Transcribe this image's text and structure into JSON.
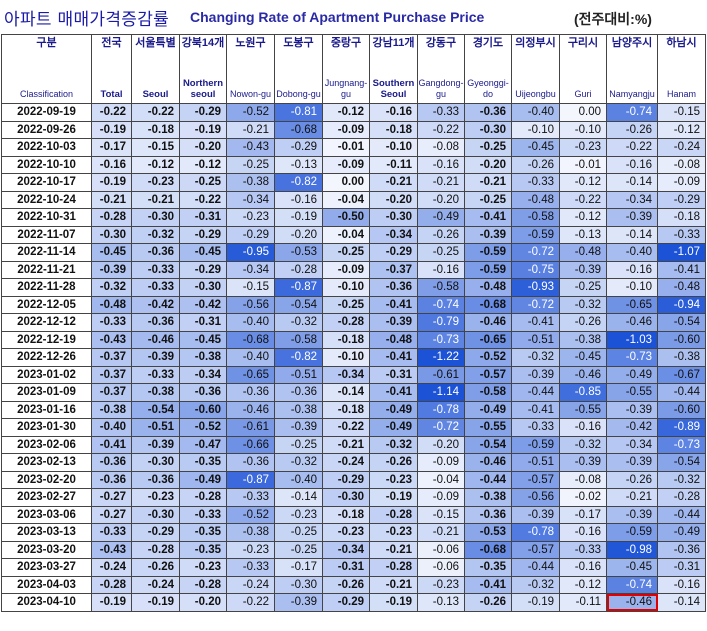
{
  "title": {
    "korean": "아파트 매매가격증감률",
    "english": "Changing Rate of Apartment Purchase Price",
    "unit": "(전주대비:%)"
  },
  "columns": [
    {
      "ko": "구분",
      "en": "Classification"
    },
    {
      "ko": "전국",
      "en": "Total"
    },
    {
      "ko": "서울특별",
      "en": "Seoul"
    },
    {
      "ko": "강북14개",
      "en": "Northern seoul"
    },
    {
      "ko": "노원구",
      "en": "Nowon-gu"
    },
    {
      "ko": "도봉구",
      "en": "Dobong-gu"
    },
    {
      "ko": "중랑구",
      "en": "Jungnang-gu"
    },
    {
      "ko": "강남11개",
      "en": "Southern Seoul"
    },
    {
      "ko": "강동구",
      "en": "Gangdong-gu"
    },
    {
      "ko": "경기도",
      "en": "Gyeonggi-do"
    },
    {
      "ko": "의정부시",
      "en": "Uijeongbu"
    },
    {
      "ko": "구리시",
      "en": "Guri"
    },
    {
      "ko": "남양주시",
      "en": "Namyangju"
    },
    {
      "ko": "하남시",
      "en": "Hanam"
    }
  ],
  "rows": [
    {
      "date": "2022-09-19",
      "values": [
        "-0.22",
        "-0.22",
        "-0.29",
        "-0.52",
        "-0.81",
        "-0.12",
        "-0.16",
        "-0.33",
        "-0.36",
        "-0.40",
        "0.00",
        "-0.74",
        "-0.15"
      ]
    },
    {
      "date": "2022-09-26",
      "values": [
        "-0.19",
        "-0.18",
        "-0.19",
        "-0.21",
        "-0.68",
        "-0.09",
        "-0.18",
        "-0.22",
        "-0.30",
        "-0.10",
        "-0.10",
        "-0.26",
        "-0.12"
      ]
    },
    {
      "date": "2022-10-03",
      "values": [
        "-0.17",
        "-0.15",
        "-0.20",
        "-0.43",
        "-0.29",
        "-0.01",
        "-0.10",
        "-0.08",
        "-0.25",
        "-0.45",
        "-0.23",
        "-0.22",
        "-0.24"
      ]
    },
    {
      "date": "2022-10-10",
      "values": [
        "-0.16",
        "-0.12",
        "-0.12",
        "-0.25",
        "-0.13",
        "-0.09",
        "-0.11",
        "-0.16",
        "-0.20",
        "-0.26",
        "-0.01",
        "-0.16",
        "-0.08"
      ]
    },
    {
      "date": "2022-10-17",
      "values": [
        "-0.19",
        "-0.23",
        "-0.25",
        "-0.38",
        "-0.82",
        "0.00",
        "-0.21",
        "-0.21",
        "-0.21",
        "-0.33",
        "-0.12",
        "-0.14",
        "-0.09"
      ]
    },
    {
      "date": "2022-10-24",
      "values": [
        "-0.21",
        "-0.21",
        "-0.22",
        "-0.34",
        "-0.16",
        "-0.04",
        "-0.20",
        "-0.20",
        "-0.25",
        "-0.48",
        "-0.22",
        "-0.34",
        "-0.29"
      ]
    },
    {
      "date": "2022-10-31",
      "values": [
        "-0.28",
        "-0.30",
        "-0.31",
        "-0.23",
        "-0.19",
        "-0.50",
        "-0.30",
        "-0.49",
        "-0.41",
        "-0.58",
        "-0.12",
        "-0.39",
        "-0.18"
      ]
    },
    {
      "date": "2022-11-07",
      "values": [
        "-0.30",
        "-0.32",
        "-0.29",
        "-0.29",
        "-0.20",
        "-0.04",
        "-0.34",
        "-0.26",
        "-0.39",
        "-0.59",
        "-0.13",
        "-0.14",
        "-0.33"
      ]
    },
    {
      "date": "2022-11-14",
      "values": [
        "-0.45",
        "-0.36",
        "-0.45",
        "-0.95",
        "-0.53",
        "-0.25",
        "-0.29",
        "-0.25",
        "-0.59",
        "-0.72",
        "-0.48",
        "-0.40",
        "-1.07"
      ]
    },
    {
      "date": "2022-11-21",
      "values": [
        "-0.39",
        "-0.33",
        "-0.29",
        "-0.34",
        "-0.28",
        "-0.09",
        "-0.37",
        "-0.16",
        "-0.59",
        "-0.75",
        "-0.39",
        "-0.16",
        "-0.41"
      ]
    },
    {
      "date": "2022-11-28",
      "values": [
        "-0.32",
        "-0.33",
        "-0.30",
        "-0.15",
        "-0.87",
        "-0.10",
        "-0.36",
        "-0.58",
        "-0.48",
        "-0.93",
        "-0.25",
        "-0.10",
        "-0.48"
      ]
    },
    {
      "date": "2022-12-05",
      "values": [
        "-0.48",
        "-0.42",
        "-0.42",
        "-0.56",
        "-0.54",
        "-0.25",
        "-0.41",
        "-0.74",
        "-0.68",
        "-0.72",
        "-0.32",
        "-0.65",
        "-0.94"
      ]
    },
    {
      "date": "2022-12-12",
      "values": [
        "-0.33",
        "-0.36",
        "-0.31",
        "-0.40",
        "-0.32",
        "-0.28",
        "-0.39",
        "-0.79",
        "-0.46",
        "-0.41",
        "-0.26",
        "-0.46",
        "-0.54"
      ]
    },
    {
      "date": "2022-12-19",
      "values": [
        "-0.43",
        "-0.46",
        "-0.45",
        "-0.68",
        "-0.58",
        "-0.18",
        "-0.48",
        "-0.73",
        "-0.65",
        "-0.51",
        "-0.38",
        "-1.03",
        "-0.60"
      ]
    },
    {
      "date": "2022-12-26",
      "values": [
        "-0.37",
        "-0.39",
        "-0.38",
        "-0.40",
        "-0.82",
        "-0.10",
        "-0.41",
        "-1.22",
        "-0.52",
        "-0.32",
        "-0.45",
        "-0.73",
        "-0.38"
      ]
    },
    {
      "date": "2023-01-02",
      "values": [
        "-0.37",
        "-0.33",
        "-0.34",
        "-0.65",
        "-0.51",
        "-0.34",
        "-0.31",
        "-0.61",
        "-0.57",
        "-0.39",
        "-0.46",
        "-0.49",
        "-0.67"
      ]
    },
    {
      "date": "2023-01-09",
      "values": [
        "-0.37",
        "-0.38",
        "-0.36",
        "-0.36",
        "-0.36",
        "-0.14",
        "-0.41",
        "-1.14",
        "-0.58",
        "-0.44",
        "-0.85",
        "-0.55",
        "-0.44"
      ]
    },
    {
      "date": "2023-01-16",
      "values": [
        "-0.38",
        "-0.54",
        "-0.60",
        "-0.46",
        "-0.38",
        "-0.18",
        "-0.49",
        "-0.78",
        "-0.49",
        "-0.41",
        "-0.55",
        "-0.39",
        "-0.60"
      ]
    },
    {
      "date": "2023-01-30",
      "values": [
        "-0.40",
        "-0.51",
        "-0.52",
        "-0.61",
        "-0.39",
        "-0.22",
        "-0.49",
        "-0.72",
        "-0.55",
        "-0.33",
        "-0.16",
        "-0.42",
        "-0.89"
      ]
    },
    {
      "date": "2023-02-06",
      "values": [
        "-0.41",
        "-0.39",
        "-0.47",
        "-0.66",
        "-0.25",
        "-0.21",
        "-0.32",
        "-0.20",
        "-0.54",
        "-0.59",
        "-0.32",
        "-0.34",
        "-0.73"
      ]
    },
    {
      "date": "2023-02-13",
      "values": [
        "-0.36",
        "-0.30",
        "-0.35",
        "-0.36",
        "-0.32",
        "-0.24",
        "-0.26",
        "-0.09",
        "-0.46",
        "-0.51",
        "-0.39",
        "-0.39",
        "-0.54"
      ]
    },
    {
      "date": "2023-02-20",
      "values": [
        "-0.36",
        "-0.36",
        "-0.49",
        "-0.87",
        "-0.40",
        "-0.29",
        "-0.23",
        "-0.04",
        "-0.44",
        "-0.57",
        "-0.08",
        "-0.26",
        "-0.32"
      ]
    },
    {
      "date": "2023-02-27",
      "values": [
        "-0.27",
        "-0.23",
        "-0.28",
        "-0.33",
        "-0.14",
        "-0.30",
        "-0.19",
        "-0.09",
        "-0.38",
        "-0.56",
        "-0.02",
        "-0.21",
        "-0.28"
      ]
    },
    {
      "date": "2023-03-06",
      "values": [
        "-0.27",
        "-0.30",
        "-0.33",
        "-0.52",
        "-0.23",
        "-0.18",
        "-0.28",
        "-0.15",
        "-0.36",
        "-0.39",
        "-0.17",
        "-0.39",
        "-0.44"
      ]
    },
    {
      "date": "2023-03-13",
      "values": [
        "-0.33",
        "-0.29",
        "-0.35",
        "-0.38",
        "-0.25",
        "-0.23",
        "-0.23",
        "-0.21",
        "-0.53",
        "-0.78",
        "-0.16",
        "-0.59",
        "-0.49"
      ]
    },
    {
      "date": "2023-03-20",
      "values": [
        "-0.43",
        "-0.28",
        "-0.35",
        "-0.23",
        "-0.25",
        "-0.34",
        "-0.21",
        "-0.06",
        "-0.68",
        "-0.57",
        "-0.33",
        "-0.98",
        "-0.36"
      ]
    },
    {
      "date": "2023-03-27",
      "values": [
        "-0.24",
        "-0.26",
        "-0.23",
        "-0.33",
        "-0.17",
        "-0.31",
        "-0.28",
        "-0.06",
        "-0.35",
        "-0.44",
        "-0.16",
        "-0.45",
        "-0.31"
      ]
    },
    {
      "date": "2023-04-03",
      "values": [
        "-0.28",
        "-0.24",
        "-0.28",
        "-0.24",
        "-0.30",
        "-0.26",
        "-0.21",
        "-0.23",
        "-0.41",
        "-0.32",
        "-0.12",
        "-0.74",
        "-0.16"
      ]
    },
    {
      "date": "2023-04-10",
      "values": [
        "-0.19",
        "-0.19",
        "-0.20",
        "-0.22",
        "-0.39",
        "-0.29",
        "-0.19",
        "-0.13",
        "-0.26",
        "-0.19",
        "-0.11",
        "-0.46",
        "-0.14"
      ]
    }
  ],
  "highlighted_cell": {
    "row": 28,
    "col": 11
  },
  "colors": {
    "title_blue": "#1a1aa6",
    "heat_light": "#f3f6fd",
    "heat_dark": "#1c52d6",
    "highlight_border": "#e00000"
  }
}
